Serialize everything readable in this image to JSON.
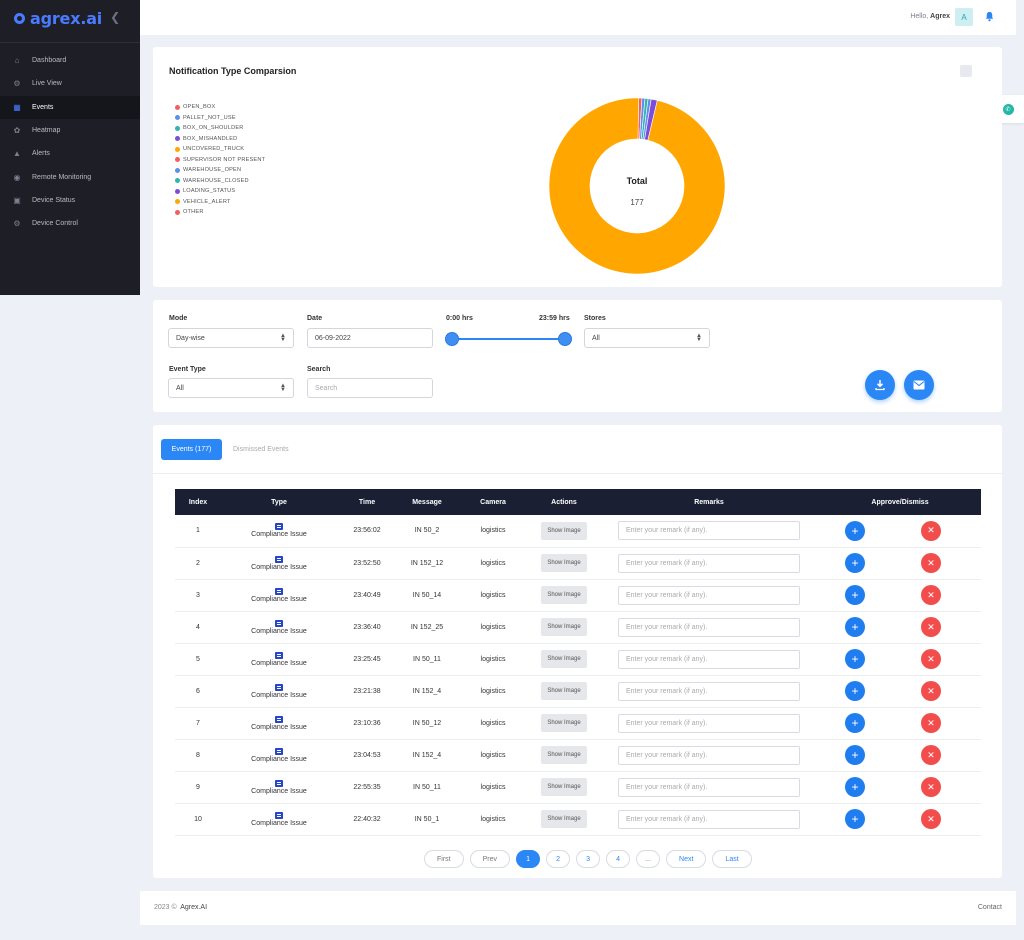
{
  "brand": {
    "name": "agrex.ai",
    "accent": "#4a7bff"
  },
  "sidebar": {
    "items": [
      {
        "label": "Dashboard",
        "icon": "home-icon"
      },
      {
        "label": "Live View",
        "icon": "gear-icon"
      },
      {
        "label": "Events",
        "icon": "calendar-icon"
      },
      {
        "label": "Heatmap",
        "icon": "map-icon"
      },
      {
        "label": "Alerts",
        "icon": "bell-icon"
      },
      {
        "label": "Remote Monitoring",
        "icon": "eye-icon"
      },
      {
        "label": "Device Status",
        "icon": "monitor-icon"
      },
      {
        "label": "Device Control",
        "icon": "cog-icon"
      }
    ]
  },
  "header": {
    "hello_prefix": "Hello, ",
    "user_name": "Agrex",
    "avatar_letter": "A"
  },
  "chart_card": {
    "title": "Notification Type Comparsion"
  },
  "chart_data": {
    "type": "pie",
    "title": "Notification Type Comparsion",
    "center_label": "Total",
    "total": "177",
    "legend_position": "left",
    "categories": [
      "OPEN_BOX",
      "PALLET_NOT_USE",
      "BOX_ON_SHOULDER",
      "BOX_MISHANDLED",
      "UNCOVERED_TRUCK",
      "SUPERVISOR NOT PRESENT",
      "WAREHOUSE_OPEN",
      "WAREHOUSE_CLOSED",
      "LOADING_STATUS",
      "VEHICLE_ALERT",
      "OTHER"
    ],
    "colors": [
      "#f25f5c",
      "#5f8ef1",
      "#2eb6a8",
      "#7c4ddb",
      "#ffa600",
      "#f25f5c",
      "#5f8ef1",
      "#2eb6a8",
      "#7c4ddb",
      "#ffa600",
      "#f25f5c"
    ],
    "values": [
      1,
      1,
      1,
      0,
      0,
      0,
      1,
      0,
      2,
      171,
      0
    ]
  },
  "filters": {
    "mode_label": "Mode",
    "mode_value": "Day-wise",
    "date_label": "Date",
    "date_value": "06-09-2022",
    "time_start": "0:00 hrs",
    "time_end": "23:59 hrs",
    "stores_label": "Stores",
    "stores_value": "All",
    "event_type_label": "Event Type",
    "event_type_value": "All",
    "search_label": "Search",
    "search_placeholder": "Search"
  },
  "events": {
    "tab_active": "Events (177)",
    "tab_other": "Dismissed Events",
    "columns": [
      "Index",
      "Type",
      "Time",
      "Message",
      "Camera",
      "Actions",
      "Remarks",
      "Approve/Dismiss"
    ],
    "show_image_label": "Show Image",
    "remark_placeholder": "Enter your remark (if any).",
    "rows": [
      {
        "index": "1",
        "type": "Compliance Issue",
        "time": "23:56:02",
        "message": "IN 50_2",
        "camera": "logistics"
      },
      {
        "index": "2",
        "type": "Compliance Issue",
        "time": "23:52:50",
        "message": "IN 152_12",
        "camera": "logistics"
      },
      {
        "index": "3",
        "type": "Compliance Issue",
        "time": "23:40:49",
        "message": "IN 50_14",
        "camera": "logistics"
      },
      {
        "index": "4",
        "type": "Compliance Issue",
        "time": "23:36:40",
        "message": "IN 152_25",
        "camera": "logistics"
      },
      {
        "index": "5",
        "type": "Compliance Issue",
        "time": "23:25:45",
        "message": "IN 50_11",
        "camera": "logistics"
      },
      {
        "index": "6",
        "type": "Compliance Issue",
        "time": "23:21:38",
        "message": "IN 152_4",
        "camera": "logistics"
      },
      {
        "index": "7",
        "type": "Compliance Issue",
        "time": "23:10:36",
        "message": "IN 50_12",
        "camera": "logistics"
      },
      {
        "index": "8",
        "type": "Compliance Issue",
        "time": "23:04:53",
        "message": "IN 152_4",
        "camera": "logistics"
      },
      {
        "index": "9",
        "type": "Compliance Issue",
        "time": "22:55:35",
        "message": "IN 50_11",
        "camera": "logistics"
      },
      {
        "index": "10",
        "type": "Compliance Issue",
        "time": "22:40:32",
        "message": "IN 50_1",
        "camera": "logistics"
      }
    ]
  },
  "pagination": {
    "first": "First",
    "prev": "Prev",
    "pages": [
      "1",
      "2",
      "3",
      "4"
    ],
    "active": "1",
    "ellipsis": "...",
    "next": "Next",
    "last": "Last"
  },
  "footer": {
    "year": "2023 ©",
    "company": "Agrex.AI",
    "contact": "Contact"
  }
}
